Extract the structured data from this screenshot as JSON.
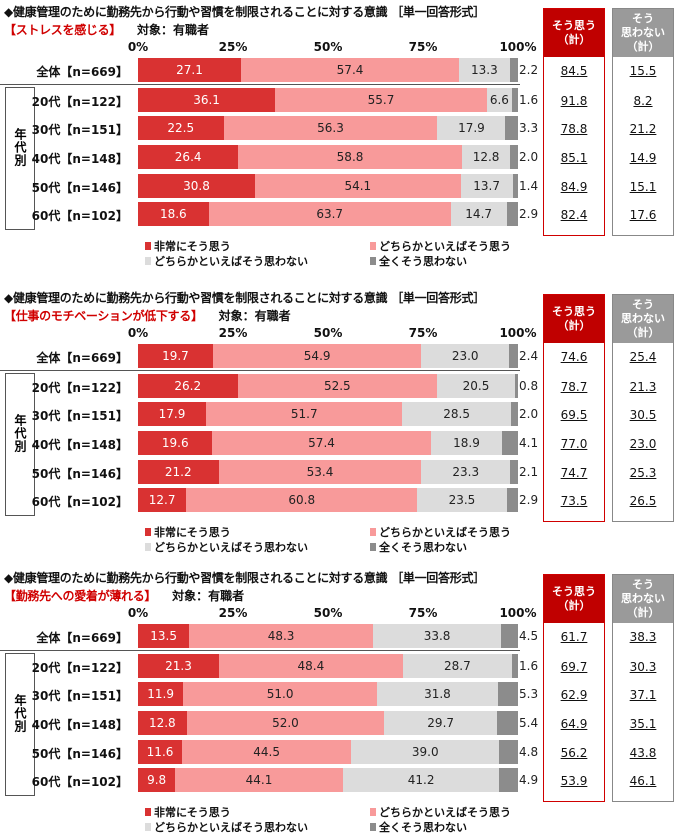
{
  "colors": {
    "very": "#d93232",
    "somewhat": "#f89a9a",
    "somewhat_not": "#dcdcdc",
    "not_at_all": "#8c8c8c",
    "yes_header": "#c00000",
    "no_header": "#9a9a9a"
  },
  "chart_data": [
    {
      "type": "bar",
      "orientation": "horizontal-stacked-100",
      "title": "◆健康管理のために勤務先から行動や習慣を制限されることに対する意識 ［単一回答形式］",
      "subtitle": "【ストレスを感じる】",
      "target": "対象：有職者",
      "xticks": [
        "0%",
        "25%",
        "50%",
        "75%",
        "100%"
      ],
      "xlim": [
        0,
        100
      ],
      "group_label": "年代別",
      "categories": [
        "全体【n=669】",
        "20代【n=122】",
        "30代【n=151】",
        "40代【n=148】",
        "50代【n=146】",
        "60代【n=102】"
      ],
      "series": [
        {
          "name": "非常にそう思う",
          "values": [
            27.1,
            36.1,
            22.5,
            26.4,
            30.8,
            18.6
          ]
        },
        {
          "name": "どちらかといえばそう思う",
          "values": [
            57.4,
            55.7,
            56.3,
            58.8,
            54.1,
            63.7
          ]
        },
        {
          "name": "どちらかといえばそう思わない",
          "values": [
            13.3,
            6.6,
            17.9,
            12.8,
            13.7,
            14.7
          ]
        },
        {
          "name": "全くそう思わない",
          "values": [
            2.2,
            1.6,
            3.3,
            2.0,
            1.4,
            2.9
          ]
        }
      ],
      "yes_header": [
        "そう思う",
        "（計）"
      ],
      "no_header": [
        "そう",
        "思わない",
        "（計）"
      ],
      "yes_total": [
        "84.5",
        "91.8",
        "78.8",
        "85.1",
        "84.9",
        "82.4"
      ],
      "no_total": [
        "15.5",
        "8.2",
        "21.2",
        "14.9",
        "15.1",
        "17.6"
      ]
    },
    {
      "type": "bar",
      "orientation": "horizontal-stacked-100",
      "title": "◆健康管理のために勤務先から行動や習慣を制限されることに対する意識 ［単一回答形式］",
      "subtitle": "【仕事のモチベーションが低下する】",
      "target": "対象：有職者",
      "xticks": [
        "0%",
        "25%",
        "50%",
        "75%",
        "100%"
      ],
      "xlim": [
        0,
        100
      ],
      "group_label": "年代別",
      "categories": [
        "全体【n=669】",
        "20代【n=122】",
        "30代【n=151】",
        "40代【n=148】",
        "50代【n=146】",
        "60代【n=102】"
      ],
      "series": [
        {
          "name": "非常にそう思う",
          "values": [
            19.7,
            26.2,
            17.9,
            19.6,
            21.2,
            12.7
          ]
        },
        {
          "name": "どちらかといえばそう思う",
          "values": [
            54.9,
            52.5,
            51.7,
            57.4,
            53.4,
            60.8
          ]
        },
        {
          "name": "どちらかといえばそう思わない",
          "values": [
            23.0,
            20.5,
            28.5,
            18.9,
            23.3,
            23.5
          ]
        },
        {
          "name": "全くそう思わない",
          "values": [
            2.4,
            0.8,
            2.0,
            4.1,
            2.1,
            2.9
          ]
        }
      ],
      "yes_header": [
        "そう思う",
        "（計）"
      ],
      "no_header": [
        "そう",
        "思わない",
        "（計）"
      ],
      "yes_total": [
        "74.6",
        "78.7",
        "69.5",
        "77.0",
        "74.7",
        "73.5"
      ],
      "no_total": [
        "25.4",
        "21.3",
        "30.5",
        "23.0",
        "25.3",
        "26.5"
      ]
    },
    {
      "type": "bar",
      "orientation": "horizontal-stacked-100",
      "title": "◆健康管理のために勤務先から行動や習慣を制限されることに対する意識 ［単一回答形式］",
      "subtitle": "【勤務先への愛着が薄れる】",
      "target": "対象：有職者",
      "xticks": [
        "0%",
        "25%",
        "50%",
        "75%",
        "100%"
      ],
      "xlim": [
        0,
        100
      ],
      "group_label": "年代別",
      "categories": [
        "全体【n=669】",
        "20代【n=122】",
        "30代【n=151】",
        "40代【n=148】",
        "50代【n=146】",
        "60代【n=102】"
      ],
      "series": [
        {
          "name": "非常にそう思う",
          "values": [
            13.5,
            21.3,
            11.9,
            12.8,
            11.6,
            9.8
          ]
        },
        {
          "name": "どちらかといえばそう思う",
          "values": [
            48.3,
            48.4,
            51.0,
            52.0,
            44.5,
            44.1
          ]
        },
        {
          "name": "どちらかといえばそう思わない",
          "values": [
            33.8,
            28.7,
            31.8,
            29.7,
            39.0,
            41.2
          ]
        },
        {
          "name": "全くそう思わない",
          "values": [
            4.5,
            1.6,
            5.3,
            5.4,
            4.8,
            4.9
          ]
        }
      ],
      "yes_header": [
        "そう思う",
        "（計）"
      ],
      "no_header": [
        "そう",
        "思わない",
        "（計）"
      ],
      "yes_total": [
        "61.7",
        "69.7",
        "62.9",
        "64.9",
        "56.2",
        "53.9"
      ],
      "no_total": [
        "38.3",
        "30.3",
        "37.1",
        "35.1",
        "43.8",
        "46.1"
      ]
    }
  ]
}
